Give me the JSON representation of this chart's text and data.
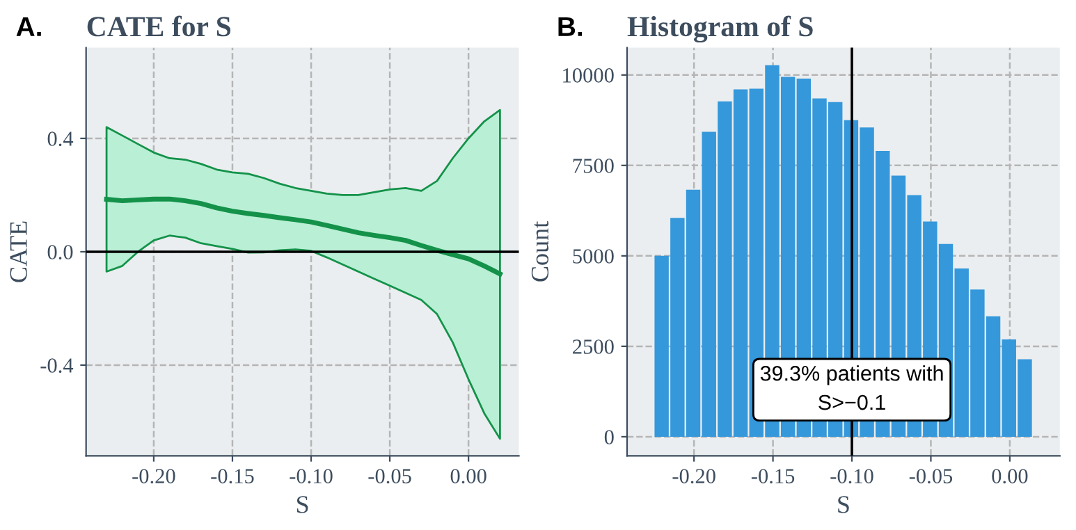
{
  "chart_data": [
    {
      "type": "line",
      "title": "CATE for S",
      "xlabel": "S",
      "ylabel": "CATE",
      "annotations": [
        "A."
      ],
      "x": [
        -0.23,
        -0.22,
        -0.21,
        -0.2,
        -0.19,
        -0.18,
        -0.17,
        -0.16,
        -0.15,
        -0.14,
        -0.13,
        -0.12,
        -0.11,
        -0.1,
        -0.09,
        -0.08,
        -0.07,
        -0.06,
        -0.05,
        -0.04,
        -0.03,
        -0.02,
        -0.01,
        0.0,
        0.01,
        0.02
      ],
      "series": [
        {
          "color": "#14924a",
          "values": [
            0.185,
            0.18,
            0.183,
            0.186,
            0.186,
            0.18,
            0.17,
            0.155,
            0.143,
            0.135,
            0.128,
            0.12,
            0.113,
            0.105,
            0.093,
            0.08,
            0.067,
            0.058,
            0.05,
            0.04,
            0.022,
            0.005,
            -0.01,
            -0.025,
            -0.05,
            -0.078
          ],
          "upper": [
            0.44,
            0.41,
            0.38,
            0.35,
            0.33,
            0.325,
            0.31,
            0.29,
            0.28,
            0.275,
            0.26,
            0.24,
            0.225,
            0.215,
            0.205,
            0.2,
            0.2,
            0.21,
            0.22,
            0.225,
            0.215,
            0.25,
            0.33,
            0.4,
            0.46,
            0.5
          ],
          "lower": [
            -0.07,
            -0.05,
            0.0,
            0.04,
            0.057,
            0.05,
            0.03,
            0.02,
            0.01,
            -0.003,
            -0.002,
            0.005,
            0.008,
            0.003,
            -0.02,
            -0.045,
            -0.07,
            -0.095,
            -0.12,
            -0.145,
            -0.17,
            -0.22,
            -0.32,
            -0.45,
            -0.57,
            -0.66
          ]
        }
      ],
      "xlim": [
        -0.243,
        0.032
      ],
      "ylim": [
        -0.72,
        0.72
      ],
      "xticks": [
        {
          "value": -0.2,
          "label": "-0.20"
        },
        {
          "value": -0.15,
          "label": "-0.15"
        },
        {
          "value": -0.1,
          "label": "-0.10"
        },
        {
          "value": -0.05,
          "label": "-0.05"
        },
        {
          "value": 0.0,
          "label": "0.00"
        }
      ],
      "yticks": [
        {
          "value": -0.4,
          "label": "-0.4"
        },
        {
          "value": 0.0,
          "label": "0.0"
        },
        {
          "value": 0.4,
          "label": "0.4"
        }
      ],
      "ref_lines": [
        {
          "axis": "y",
          "value": 0,
          "color": "#000000"
        }
      ],
      "grid": true,
      "legend": false,
      "line_style": "solid"
    },
    {
      "type": "histogram",
      "title": "Histogram of S",
      "xlabel": "S",
      "ylabel": "Count",
      "color": "#3498db",
      "annotations": [
        "B.",
        {
          "text": "39.3% patients with\nS>−0.1",
          "x": -0.1,
          "y": 1300
        }
      ],
      "bins": [
        -0.225,
        -0.215,
        -0.205,
        -0.195,
        -0.185,
        -0.175,
        -0.165,
        -0.155,
        -0.145,
        -0.135,
        -0.125,
        -0.115,
        -0.105,
        -0.095,
        -0.085,
        -0.075,
        -0.065,
        -0.055,
        -0.045,
        -0.035,
        -0.025,
        -0.015,
        -0.005,
        0.005,
        0.015
      ],
      "values": [
        5000,
        6050,
        6830,
        8430,
        9270,
        9600,
        9620,
        10270,
        9950,
        9900,
        9350,
        9250,
        8750,
        8550,
        7900,
        7220,
        6680,
        5950,
        5330,
        4650,
        4070,
        3330,
        2690,
        2140
      ],
      "xlim": [
        -0.2424,
        0.0317
      ],
      "ylim": [
        -527,
        10754
      ],
      "xticks": [
        {
          "value": -0.2,
          "label": "-0.20"
        },
        {
          "value": -0.15,
          "label": "-0.15"
        },
        {
          "value": -0.1,
          "label": "-0.10"
        },
        {
          "value": -0.05,
          "label": "-0.05"
        },
        {
          "value": 0.0,
          "label": "0.00"
        }
      ],
      "yticks": [
        0,
        2500,
        5000,
        7500,
        10000
      ],
      "ref_lines": [
        {
          "axis": "x",
          "value": -0.1,
          "color": "#000000"
        }
      ],
      "grid": true,
      "legend": false
    }
  ]
}
